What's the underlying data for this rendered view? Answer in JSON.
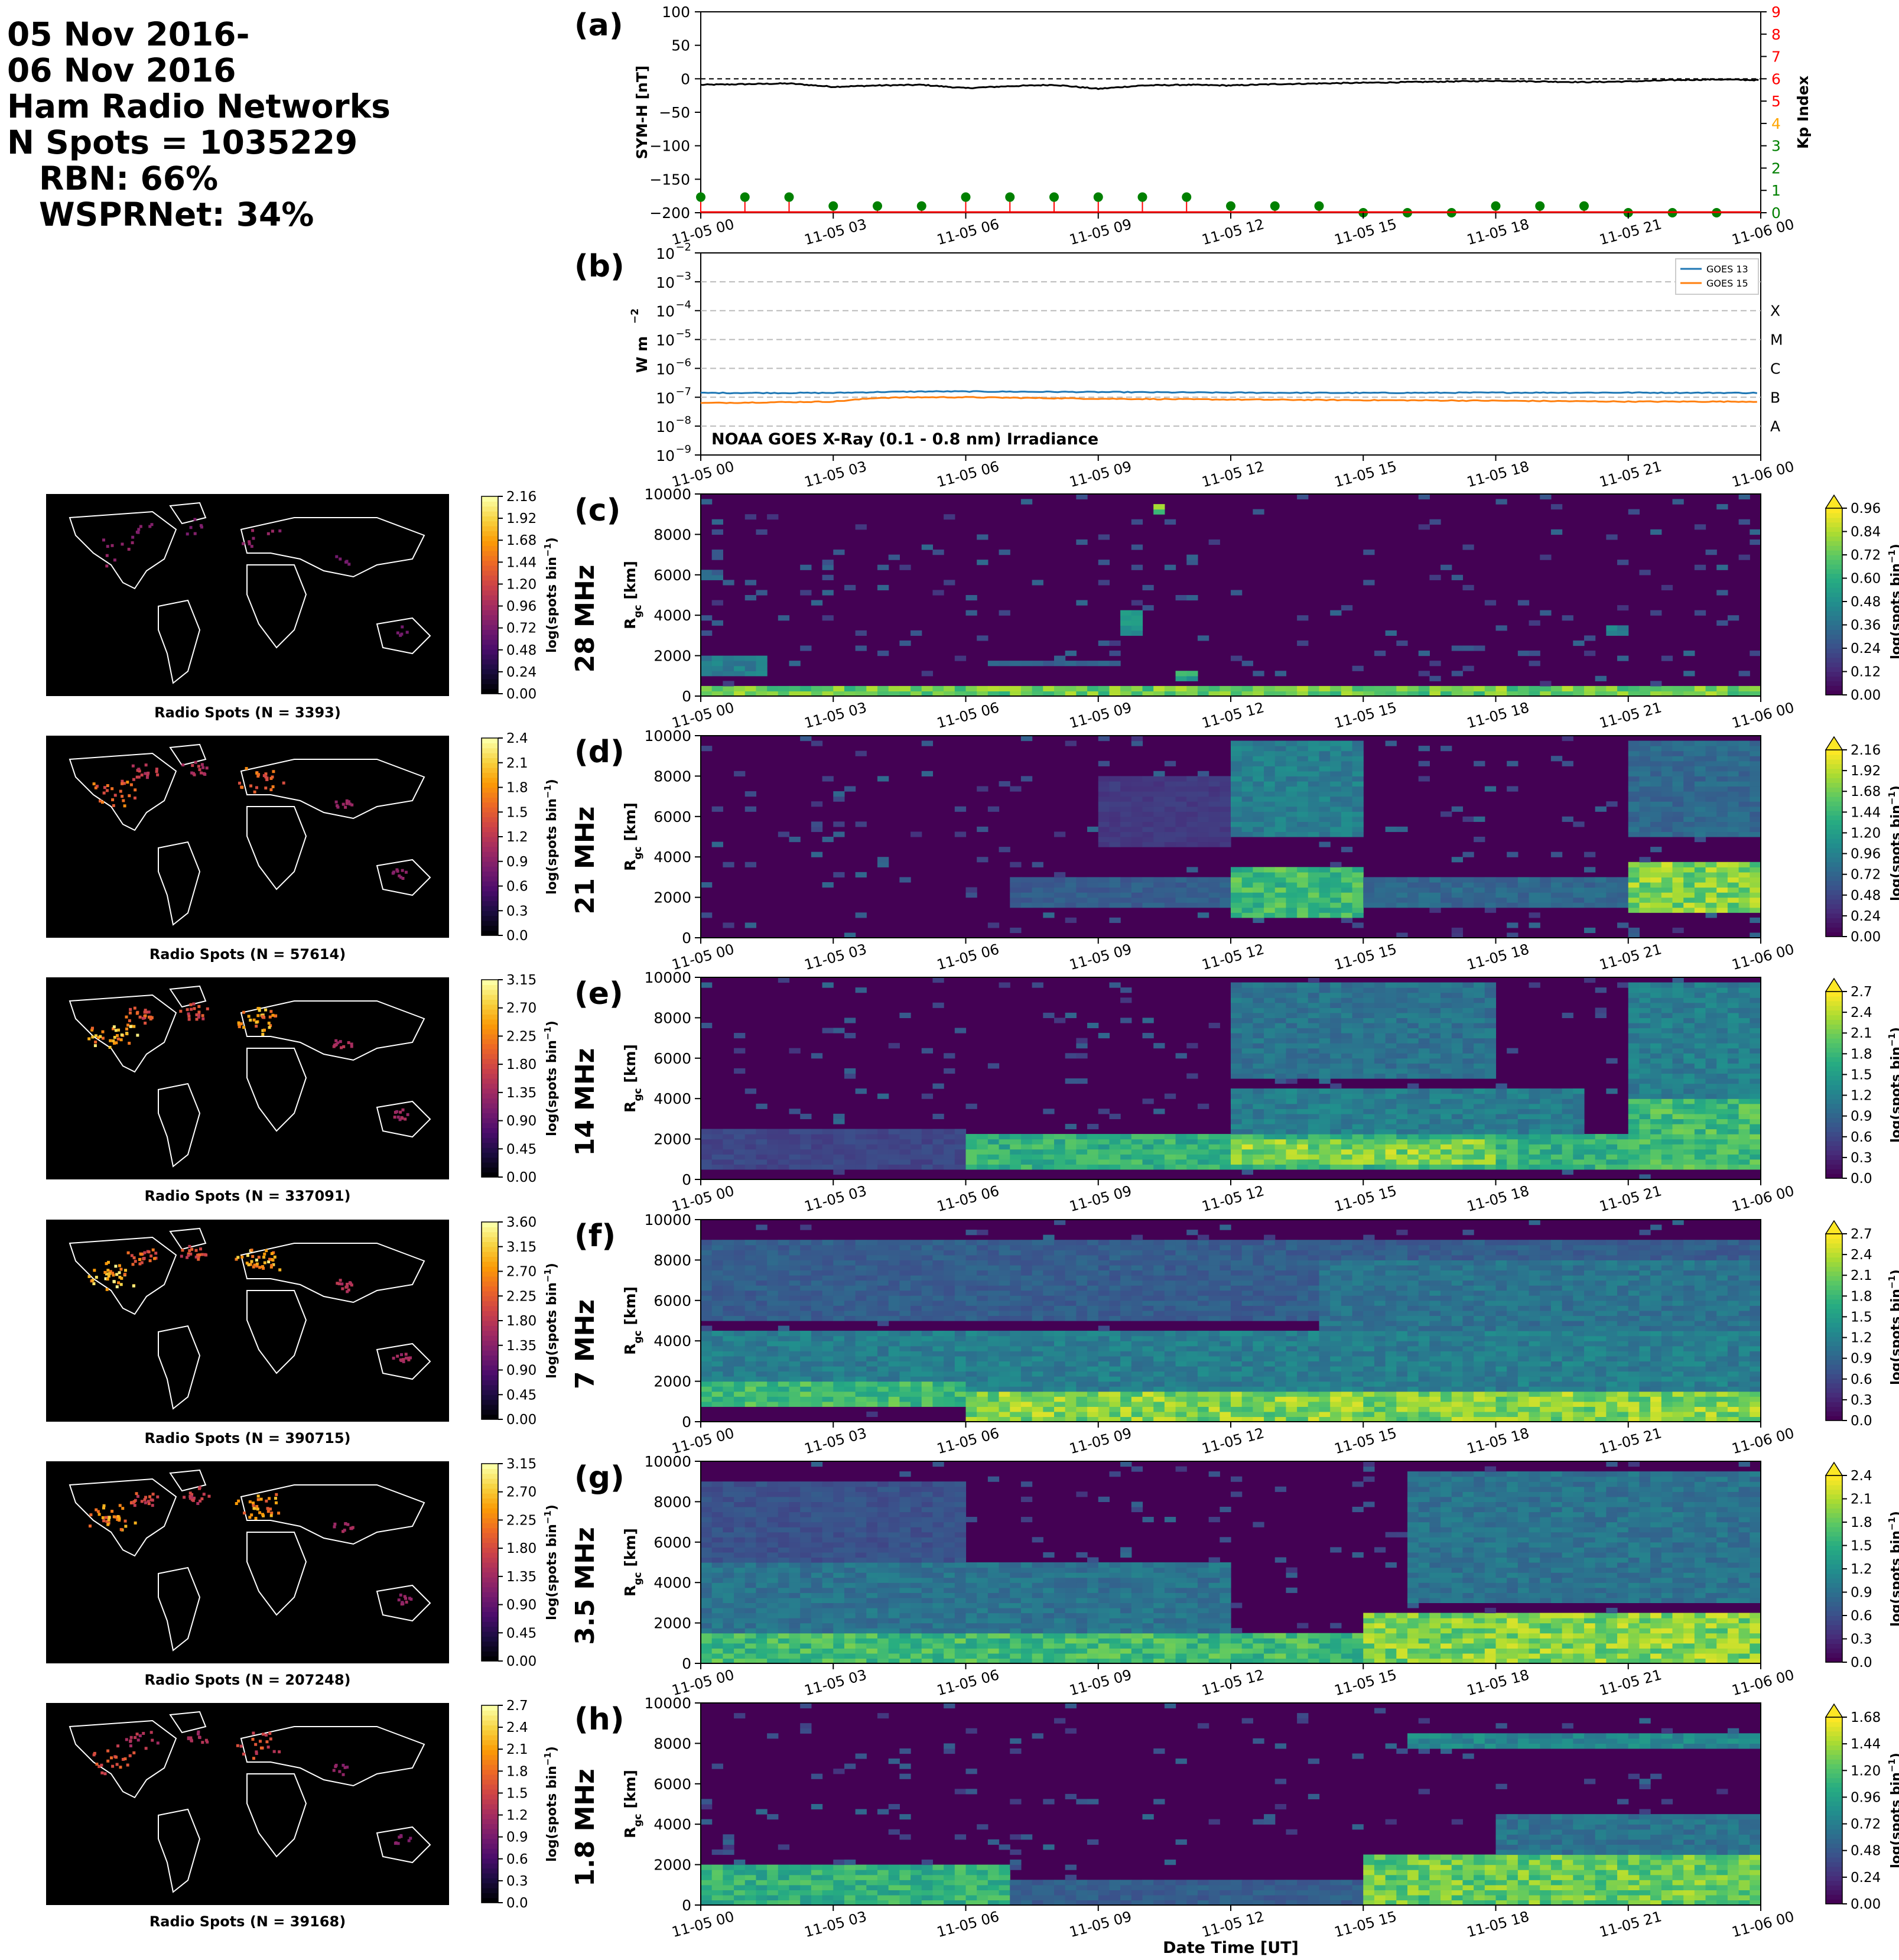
{
  "header": {
    "date_line1": "05 Nov 2016-",
    "date_line2": "06 Nov 2016",
    "networks_line": "Ham Radio Networks",
    "spots_line": "N Spots = 1035229",
    "rbn_line": "RBN: 66%",
    "wspr_line": "WSPRNet: 34%"
  },
  "time_ticks": [
    "11-05 00",
    "11-05 03",
    "11-05 06",
    "11-05 09",
    "11-05 12",
    "11-05 15",
    "11-05 18",
    "11-05 21",
    "11-06 00"
  ],
  "xlabel": "Date Time [UT]",
  "colormap_colors": {
    "viridis": [
      "#440154",
      "#472c7a",
      "#3b518b",
      "#2c718e",
      "#21908d",
      "#27ad81",
      "#5cc863",
      "#aadc32",
      "#fde725"
    ],
    "inferno": [
      "#000004",
      "#1b0c41",
      "#4a0c6b",
      "#781c6d",
      "#a52c60",
      "#cf4446",
      "#ed6925",
      "#fb9b06",
      "#f7d13d",
      "#fcffa4"
    ]
  },
  "chart_data": [
    {
      "id": "a",
      "panel_label": "(a)",
      "type": "line",
      "ylabel": "SYM-H [nT]",
      "ylim": [
        -200,
        100
      ],
      "yticks": [
        "100",
        "50",
        "0",
        "−50",
        "−100",
        "−150",
        "−200"
      ],
      "reference_line": 0,
      "symh_series": {
        "x_hours": [
          0,
          1,
          2,
          3,
          4,
          5,
          6,
          7,
          8,
          9,
          10,
          11,
          12,
          13,
          14,
          15,
          16,
          17,
          18,
          19,
          20,
          21,
          22,
          23,
          24
        ],
        "values": [
          -9,
          -8,
          -7,
          -12,
          -10,
          -9,
          -14,
          -11,
          -9,
          -15,
          -10,
          -9,
          -10,
          -8,
          -7,
          -6,
          -5,
          -4,
          -3,
          -4,
          -5,
          -4,
          -2,
          -1,
          -2
        ],
        "color": "#000000"
      },
      "kp_axis": {
        "label": "Kp Index",
        "ylim": [
          0,
          9
        ],
        "ticks": [
          "0",
          "1",
          "2",
          "3",
          "4",
          "5",
          "6",
          "7",
          "8",
          "9"
        ],
        "tick_colors": [
          "#008000",
          "#008000",
          "#008000",
          "#008000",
          "#ffa500",
          "#ff0000",
          "#ff0000",
          "#ff0000",
          "#ff0000",
          "#ff0000"
        ]
      },
      "kp_series": {
        "x_hours": [
          0,
          1,
          2,
          3,
          4,
          5,
          6,
          7,
          8,
          9,
          10,
          11,
          12,
          13,
          14,
          15,
          16,
          17,
          18,
          19,
          20,
          21,
          22,
          23
        ],
        "values": [
          0.7,
          0.7,
          0.7,
          0.3,
          0.3,
          0.3,
          0.7,
          0.7,
          0.7,
          0.7,
          0.7,
          0.7,
          0.3,
          0.3,
          0.3,
          0.0,
          0.0,
          0.0,
          0.3,
          0.3,
          0.3,
          0.0,
          0.0,
          0.0
        ],
        "color": "#008000"
      }
    },
    {
      "id": "b",
      "panel_label": "(b)",
      "type": "line",
      "ylabel": "W m",
      "ylabel_sup": "−2",
      "ylim_exponent": [
        -9,
        -2
      ],
      "ytick_exponents": [
        "−2",
        "−3",
        "−4",
        "−5",
        "−6",
        "−7",
        "−8",
        "−9"
      ],
      "flare_classes": [
        {
          "label": "X",
          "exponent": -4
        },
        {
          "label": "M",
          "exponent": -5
        },
        {
          "label": "C",
          "exponent": -6
        },
        {
          "label": "B",
          "exponent": -7
        },
        {
          "label": "A",
          "exponent": -8
        }
      ],
      "annotation": "NOAA GOES X-Ray (0.1 - 0.8 nm) Irradiance",
      "series": [
        {
          "name": "GOES 13",
          "color": "#1f77b4",
          "x_hours": [
            0,
            3,
            4,
            5,
            6,
            9,
            12,
            15,
            18,
            21,
            24
          ],
          "log10_values": [
            -6.85,
            -6.85,
            -6.82,
            -6.8,
            -6.8,
            -6.82,
            -6.84,
            -6.85,
            -6.84,
            -6.84,
            -6.85
          ]
        },
        {
          "name": "GOES 15",
          "color": "#ff7f0e",
          "x_hours": [
            0,
            3,
            4,
            5,
            6,
            9,
            12,
            15,
            18,
            21,
            24
          ],
          "log10_values": [
            -7.2,
            -7.15,
            -7.02,
            -7.0,
            -7.0,
            -7.05,
            -7.08,
            -7.1,
            -7.12,
            -7.15,
            -7.15
          ]
        }
      ]
    },
    {
      "id": "c",
      "panel_label": "(c)",
      "freq_label": "28 MHz",
      "type": "heatmap",
      "ylabel": "R",
      "ylabel_sub": "gc",
      "ylabel_unit": " [km]",
      "yticks": [
        "10000",
        "8000",
        "6000",
        "4000",
        "2000",
        "0"
      ],
      "ylim": [
        0,
        10000
      ],
      "cmap": "viridis",
      "vmax": 0.96,
      "cbar_ticks": [
        "0.96",
        "0.84",
        "0.72",
        "0.60",
        "0.48",
        "0.36",
        "0.24",
        "0.12",
        "0.00"
      ],
      "cbar_label": "log(spots bin",
      "map_caption": "Radio Spots (N = 3393)",
      "map_cbar_ticks": [
        "2.16",
        "1.92",
        "1.68",
        "1.44",
        "1.20",
        "0.96",
        "0.72",
        "0.48",
        "0.24",
        "0.00"
      ],
      "map_intensity": 0.15,
      "blobs": [
        [
          0.0,
          23.9,
          100,
          400,
          0.9
        ],
        [
          10.2,
          10.6,
          9000,
          9600,
          0.9
        ],
        [
          0,
          1.5,
          900,
          2000,
          0.5
        ],
        [
          9.5,
          10.0,
          3000,
          4200,
          0.6
        ],
        [
          10.8,
          11.2,
          800,
          1300,
          0.7
        ],
        [
          6.5,
          9.5,
          1400,
          1800,
          0.35
        ],
        [
          20.5,
          21.0,
          3000,
          3600,
          0.5
        ],
        [
          0,
          0.5,
          5800,
          6300,
          0.4
        ]
      ]
    },
    {
      "id": "d",
      "panel_label": "(d)",
      "freq_label": "21 MHz",
      "type": "heatmap",
      "ylabel": "R",
      "ylabel_sub": "gc",
      "ylabel_unit": " [km]",
      "yticks": [
        "10000",
        "8000",
        "6000",
        "4000",
        "2000",
        "0"
      ],
      "ylim": [
        0,
        10000
      ],
      "cmap": "viridis",
      "vmax": 2.16,
      "cbar_ticks": [
        "2.16",
        "1.92",
        "1.68",
        "1.44",
        "1.20",
        "0.96",
        "0.72",
        "0.48",
        "0.24",
        "0.00"
      ],
      "cbar_label": "log(spots bin",
      "map_caption": "Radio Spots (N = 57614)",
      "map_cbar_ticks": [
        "2.4",
        "2.1",
        "1.8",
        "1.5",
        "1.2",
        "0.9",
        "0.6",
        "0.3",
        "0.0"
      ],
      "map_intensity": 0.55,
      "blobs": [
        [
          7,
          12,
          1600,
          3000,
          0.35
        ],
        [
          12,
          15,
          1000,
          3500,
          0.8
        ],
        [
          12,
          15,
          5000,
          9800,
          0.5
        ],
        [
          15,
          21,
          1500,
          3000,
          0.4
        ],
        [
          21,
          23.9,
          1200,
          3800,
          0.95
        ],
        [
          21,
          23.9,
          5000,
          9800,
          0.4
        ],
        [
          9,
          12,
          4500,
          8000,
          0.2
        ]
      ]
    },
    {
      "id": "e",
      "panel_label": "(e)",
      "freq_label": "14 MHz",
      "type": "heatmap",
      "ylabel": "R",
      "ylabel_sub": "gc",
      "ylabel_unit": " [km]",
      "yticks": [
        "10000",
        "8000",
        "6000",
        "4000",
        "2000",
        "0"
      ],
      "ylim": [
        0,
        10000
      ],
      "cmap": "viridis",
      "vmax": 2.7,
      "cbar_ticks": [
        "2.7",
        "2.4",
        "2.1",
        "1.8",
        "1.5",
        "1.2",
        "0.9",
        "0.6",
        "0.3",
        "0.0"
      ],
      "cbar_label": "log(spots bin",
      "map_caption": "Radio Spots (N = 337091)",
      "map_cbar_ticks": [
        "3.15",
        "2.70",
        "2.25",
        "1.80",
        "1.35",
        "0.90",
        "0.45",
        "0.00"
      ],
      "map_intensity": 0.8,
      "blobs": [
        [
          6,
          23.9,
          500,
          2200,
          0.75
        ],
        [
          12,
          18,
          800,
          2000,
          0.95
        ],
        [
          12,
          20,
          2000,
          4500,
          0.5
        ],
        [
          12,
          18,
          5000,
          9800,
          0.45
        ],
        [
          21,
          23.9,
          500,
          4000,
          0.8
        ],
        [
          21,
          23.9,
          4000,
          9800,
          0.5
        ],
        [
          0,
          6,
          500,
          2500,
          0.25
        ]
      ]
    },
    {
      "id": "f",
      "panel_label": "(f)",
      "freq_label": "7 MHz",
      "type": "heatmap",
      "ylabel": "R",
      "ylabel_sub": "gc",
      "ylabel_unit": " [km]",
      "yticks": [
        "10000",
        "8000",
        "6000",
        "4000",
        "2000",
        "0"
      ],
      "ylim": [
        0,
        10000
      ],
      "cmap": "viridis",
      "vmax": 2.7,
      "cbar_ticks": [
        "2.7",
        "2.4",
        "2.1",
        "1.8",
        "1.5",
        "1.2",
        "0.9",
        "0.6",
        "0.3",
        "0.0"
      ],
      "cbar_label": "log(spots bin",
      "map_caption": "Radio Spots (N = 390715)",
      "map_cbar_ticks": [
        "3.60",
        "3.15",
        "2.70",
        "2.25",
        "1.80",
        "1.35",
        "0.90",
        "0.45",
        "0.00"
      ],
      "map_intensity": 0.85,
      "blobs": [
        [
          0,
          6,
          800,
          2000,
          0.8
        ],
        [
          6,
          23.9,
          100,
          1500,
          0.95
        ],
        [
          0,
          23.9,
          1500,
          4500,
          0.5
        ],
        [
          0,
          23.9,
          5000,
          9000,
          0.35
        ],
        [
          14,
          23.9,
          4000,
          8000,
          0.45
        ]
      ]
    },
    {
      "id": "g",
      "panel_label": "(g)",
      "freq_label": "3.5 MHz",
      "type": "heatmap",
      "ylabel": "R",
      "ylabel_sub": "gc",
      "ylabel_unit": " [km]",
      "yticks": [
        "10000",
        "8000",
        "6000",
        "4000",
        "2000",
        "0"
      ],
      "ylim": [
        0,
        10000
      ],
      "cmap": "viridis",
      "vmax": 2.4,
      "cbar_ticks": [
        "2.4",
        "2.1",
        "1.8",
        "1.5",
        "1.2",
        "0.9",
        "0.6",
        "0.3",
        "0.0"
      ],
      "cbar_label": "log(spots bin",
      "map_caption": "Radio Spots (N = 207248)",
      "map_cbar_ticks": [
        "3.15",
        "2.70",
        "2.25",
        "1.80",
        "1.35",
        "0.90",
        "0.45",
        "0.00"
      ],
      "map_intensity": 0.7,
      "blobs": [
        [
          0,
          15,
          100,
          1500,
          0.8
        ],
        [
          15,
          23.9,
          100,
          2500,
          0.95
        ],
        [
          0,
          12,
          1500,
          5000,
          0.45
        ],
        [
          16,
          23.9,
          3000,
          9500,
          0.45
        ],
        [
          0,
          6,
          5000,
          9000,
          0.3
        ]
      ]
    },
    {
      "id": "h",
      "panel_label": "(h)",
      "freq_label": "1.8 MHz",
      "type": "heatmap",
      "ylabel": "R",
      "ylabel_sub": "gc",
      "ylabel_unit": " [km]",
      "yticks": [
        "10000",
        "8000",
        "6000",
        "4000",
        "2000",
        "0"
      ],
      "ylim": [
        0,
        10000
      ],
      "cmap": "viridis",
      "vmax": 1.68,
      "cbar_ticks": [
        "1.68",
        "1.44",
        "1.20",
        "0.96",
        "0.72",
        "0.48",
        "0.24",
        "0.00"
      ],
      "cbar_label": "log(spots bin",
      "map_caption": "Radio Spots (N = 39168)",
      "map_cbar_ticks": [
        "2.7",
        "2.4",
        "2.1",
        "1.8",
        "1.5",
        "1.2",
        "0.9",
        "0.6",
        "0.3",
        "0.0"
      ],
      "map_intensity": 0.45,
      "blobs": [
        [
          0,
          7,
          100,
          2000,
          0.75
        ],
        [
          7,
          15,
          100,
          1200,
          0.35
        ],
        [
          15,
          23.9,
          100,
          2500,
          0.9
        ],
        [
          16,
          23.9,
          7800,
          8500,
          0.55
        ],
        [
          18,
          23.9,
          2500,
          4500,
          0.45
        ]
      ]
    }
  ]
}
